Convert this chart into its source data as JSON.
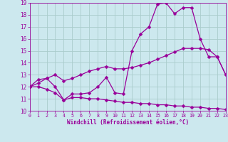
{
  "xlabel": "Windchill (Refroidissement éolien,°C)",
  "background_color": "#cce8ee",
  "grid_color": "#aacccc",
  "line_color": "#990099",
  "x": [
    0,
    1,
    2,
    3,
    4,
    5,
    6,
    7,
    8,
    9,
    10,
    11,
    12,
    13,
    14,
    15,
    16,
    17,
    18,
    19,
    20,
    21,
    22,
    23
  ],
  "curve1": [
    12.0,
    12.6,
    12.7,
    12.0,
    10.9,
    11.4,
    11.4,
    11.5,
    12.0,
    12.8,
    11.5,
    11.4,
    15.0,
    16.4,
    17.0,
    18.9,
    19.0,
    18.1,
    18.6,
    18.6,
    16.0,
    14.5,
    14.5,
    13.0
  ],
  "curve2": [
    12.0,
    12.3,
    12.7,
    13.0,
    12.5,
    12.7,
    13.0,
    13.3,
    13.5,
    13.7,
    13.5,
    13.5,
    13.6,
    13.8,
    14.0,
    14.3,
    14.6,
    14.9,
    15.2,
    15.2,
    15.2,
    15.1,
    14.5,
    13.0
  ],
  "curve3": [
    12.0,
    12.0,
    11.8,
    11.5,
    10.9,
    11.1,
    11.1,
    11.0,
    11.0,
    10.9,
    10.8,
    10.7,
    10.7,
    10.6,
    10.6,
    10.5,
    10.5,
    10.4,
    10.4,
    10.3,
    10.3,
    10.2,
    10.2,
    10.1
  ],
  "ylim": [
    10,
    19
  ],
  "xlim": [
    0,
    23
  ],
  "yticks": [
    10,
    11,
    12,
    13,
    14,
    15,
    16,
    17,
    18,
    19
  ],
  "xticks": [
    0,
    1,
    2,
    3,
    4,
    5,
    6,
    7,
    8,
    9,
    10,
    11,
    12,
    13,
    14,
    15,
    16,
    17,
    18,
    19,
    20,
    21,
    22,
    23
  ],
  "markersize": 2.5,
  "linewidth": 0.9
}
